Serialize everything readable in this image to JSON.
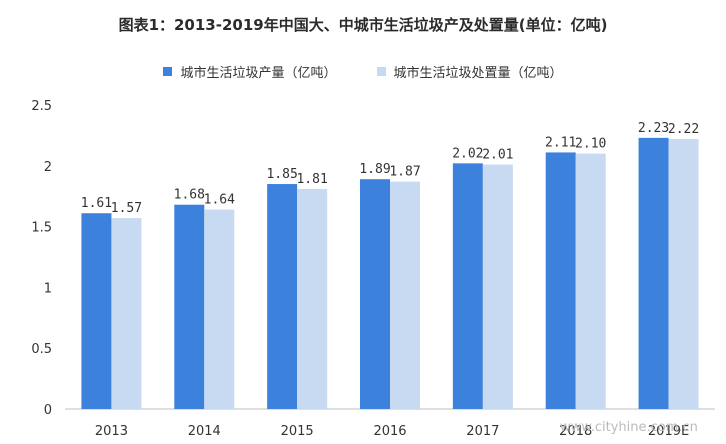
{
  "title": "图表1：2013-2019年中国大、中城市生活垃圾产及处置量(单位：亿吨)",
  "watermark": "www.cityhine.com.cn",
  "chart_data": {
    "type": "bar",
    "categories": [
      "2013",
      "2014",
      "2015",
      "2016",
      "2017",
      "2018",
      "2019E"
    ],
    "series": [
      {
        "name": "城市生活垃圾产量（亿吨）",
        "values": [
          1.61,
          1.68,
          1.85,
          1.89,
          2.02,
          2.11,
          2.23
        ],
        "labels": [
          "1.61",
          "1.68",
          "1.85",
          "1.89",
          "2.02",
          "2.11",
          "2.23"
        ],
        "color": "#3c82dc"
      },
      {
        "name": "城市生活垃圾处置量（亿吨）",
        "values": [
          1.57,
          1.64,
          1.81,
          1.87,
          2.01,
          2.1,
          2.22
        ],
        "labels": [
          "1.57",
          "1.64",
          "1.81",
          "1.87",
          "2.01",
          "2.10",
          "2.22"
        ],
        "color": "#c8d9f2"
      }
    ],
    "yticks": [
      "0",
      "0.5",
      "1",
      "1.5",
      "2",
      "2.5"
    ],
    "ylim": [
      0,
      2.5
    ],
    "legend_position": "top-center",
    "grid": false
  }
}
